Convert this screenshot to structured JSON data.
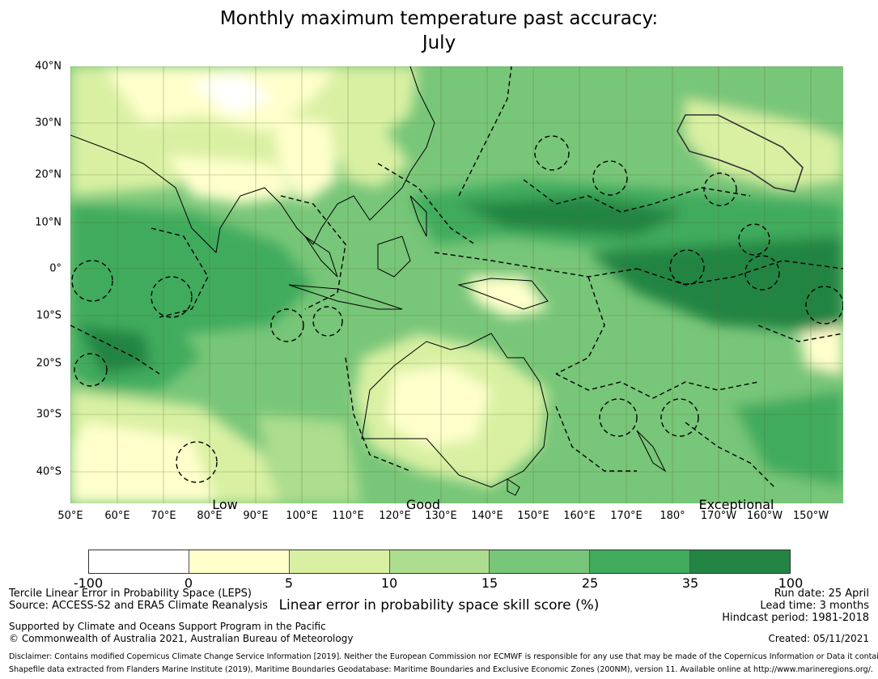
{
  "title_line1": "Monthly maximum temperature past accuracy:",
  "title_line2": "July",
  "lat_labels": [
    "40°N",
    "30°N",
    "20°N",
    "10°N",
    "0°",
    "10°S",
    "20°S",
    "30°S",
    "40°S"
  ],
  "lon_labels": [
    "50°E",
    "60°E",
    "70°E",
    "80°E",
    "90°E",
    "100°E",
    "110°E",
    "120°E",
    "130°E",
    "140°E",
    "150°E",
    "160°E",
    "170°E",
    "180°",
    "170°W",
    "160°W",
    "150°W"
  ],
  "skill_categories": [
    "Low",
    "Good",
    "Exceptional"
  ],
  "colorbar": {
    "ticks": [
      "-100",
      "0",
      "5",
      "10",
      "15",
      "25",
      "35",
      "100"
    ],
    "colors": [
      "#ffffff",
      "#ffffcc",
      "#d9f0a3",
      "#addd8e",
      "#78c679",
      "#41ab5d",
      "#238443"
    ],
    "label": "Linear error in probability space skill score (%)"
  },
  "map_colors": {
    "land_outline": "#000000",
    "eez_boundary": "#000000",
    "grid": "#556b2f"
  },
  "notes": {
    "leps_line": "Tercile Linear Error in Probability Space (LEPS)",
    "source_line": "Source: ACCESS-S2 and ERA5 Climate Reanalysis",
    "support_line": "Supported by Climate and Oceans Support Program in the Pacific",
    "copyright_line": "© Commonwealth of Australia 2021, Australian Bureau of Meteorology",
    "run_date": "Run date: 25 April",
    "lead_time": "Lead time: 3 months",
    "hindcast": "Hindcast period: 1981-2018",
    "created": "Created: 05/11/2021",
    "disclaimer": "Disclaimer: Contains modified Copernicus Climate Change Service Information [2019]. Neither the European Commission nor ECMWF is responsible for any use that may be made of the Copernicus Information or Data it contains.",
    "shapefile": "Shapefile data extracted from Flanders Marine Institute (2019), Maritime Boundaries Geodatabase: Maritime Boundaries and Exclusive Economic Zones (200NM), version 11. Available online at http://www.marineregions.org/."
  }
}
